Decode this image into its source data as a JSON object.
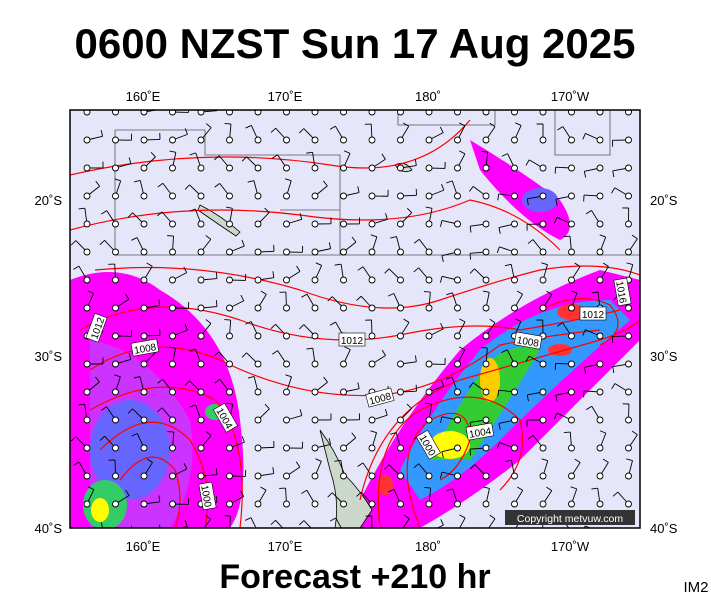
{
  "title": "0600 NZST Sun 17 Aug 2025",
  "map": {
    "lon_labels_top": [
      "160˚E",
      "170˚E",
      "180˚",
      "170˚W"
    ],
    "lon_labels_bottom": [
      "160˚E",
      "170˚E",
      "180˚",
      "170˚W"
    ],
    "lat_labels_left": [
      "20˚S",
      "30˚S",
      "40˚S"
    ],
    "lat_labels_right": [
      "20˚S",
      "30˚S",
      "40˚S"
    ],
    "isobar_labels": [
      "1012",
      "1008",
      "1004",
      "1000",
      "1012",
      "1008",
      "1000",
      "1004",
      "1008",
      "1012",
      "1016"
    ],
    "copyright": "Copyright metvuw.com"
  },
  "footer": "Forecast +210 hr",
  "id": "IM2"
}
